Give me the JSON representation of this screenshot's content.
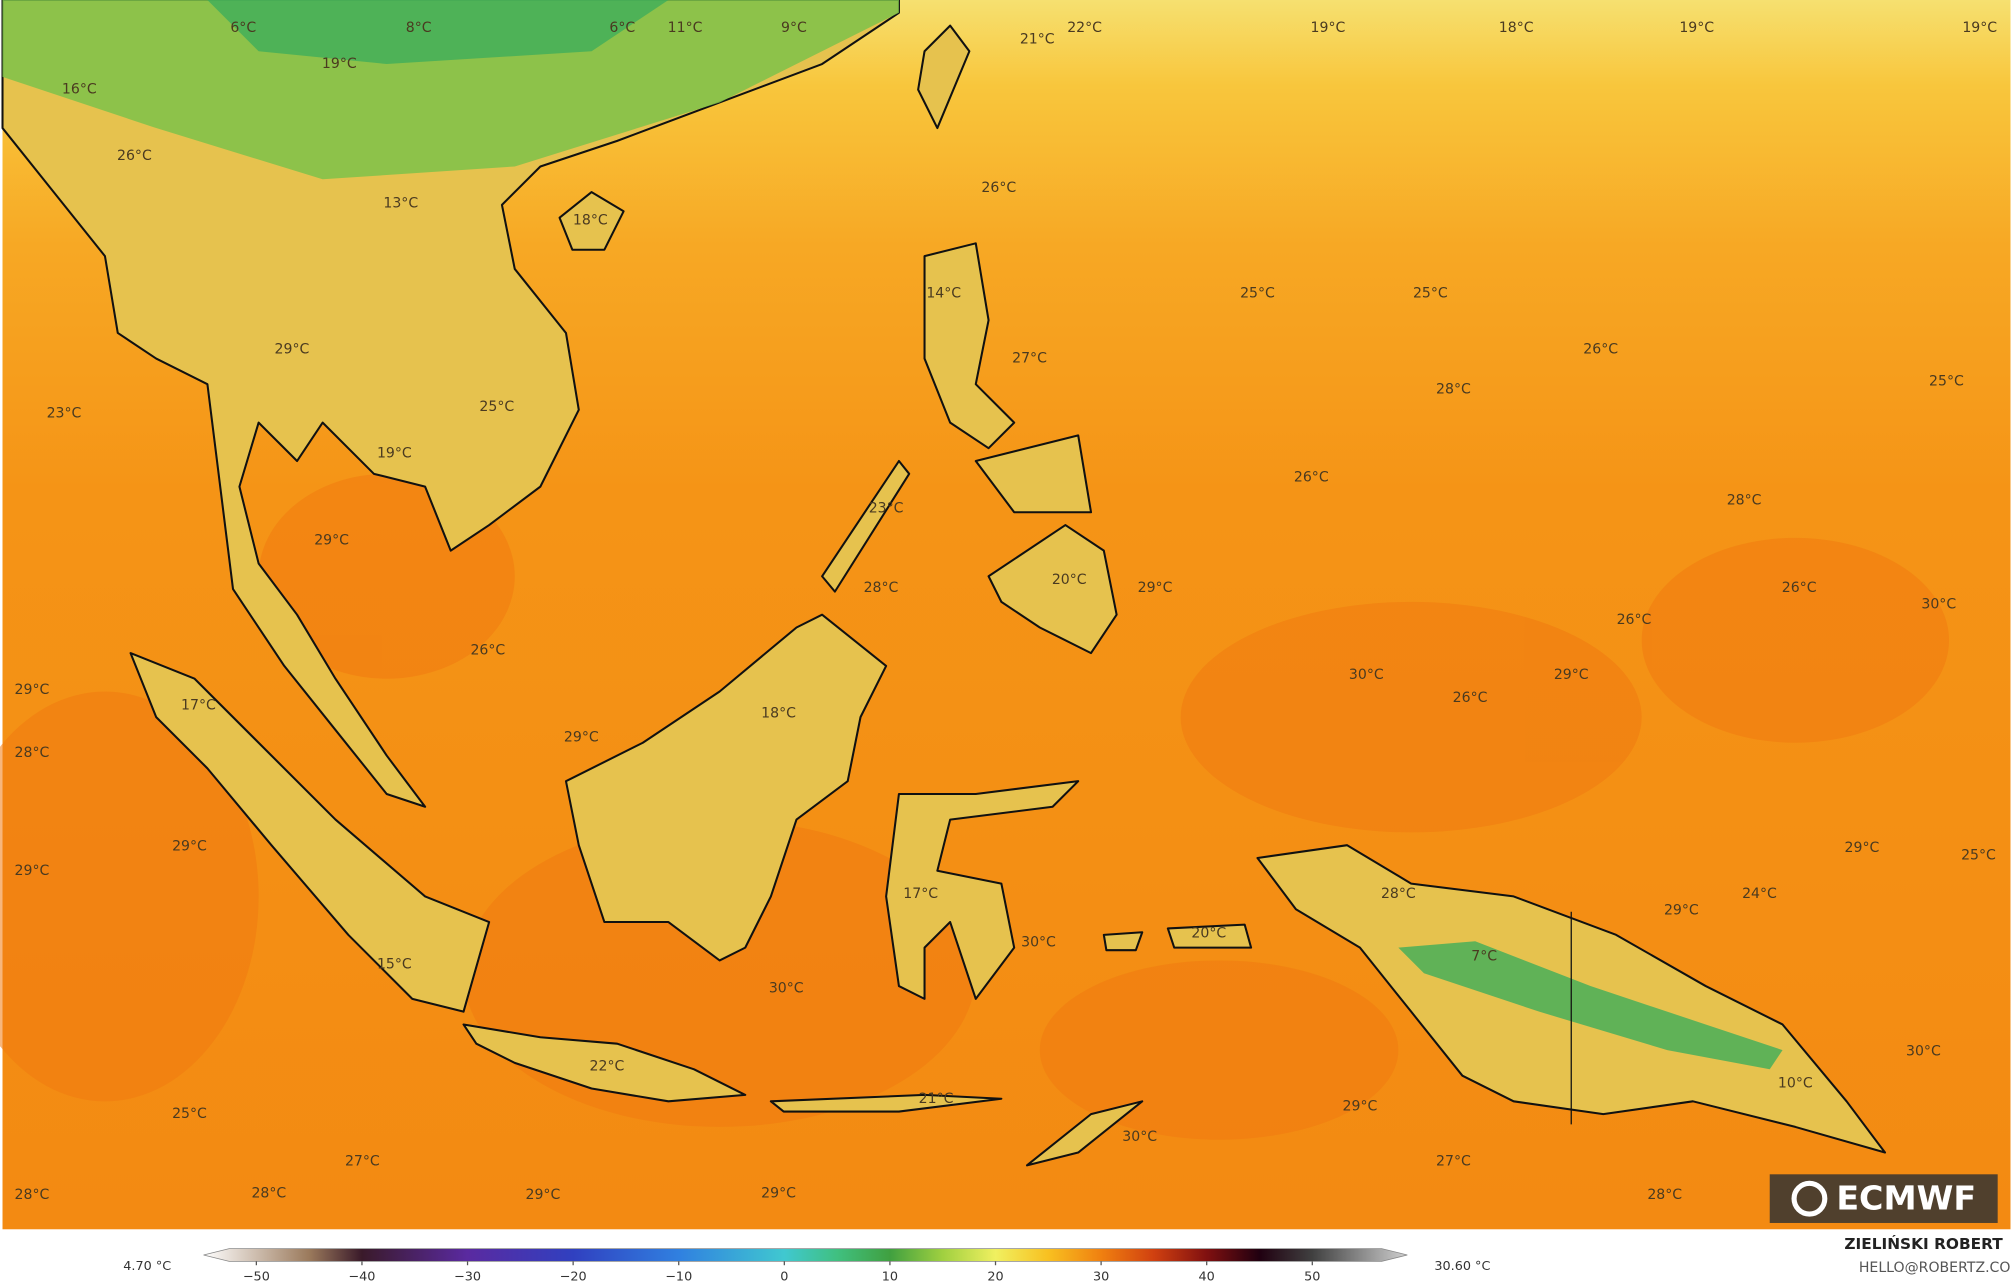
{
  "map": {
    "labels": [
      "6°C",
      "8°C",
      "6°C",
      "11°C",
      "9°C",
      "21°C",
      "22°C",
      "19°C",
      "18°C",
      "19°C",
      "19°C",
      "16°C",
      "19°C",
      "26°C",
      "13°C",
      "18°C",
      "26°C",
      "14°C",
      "25°C",
      "25°C",
      "26°C",
      "27°C",
      "28°C",
      "25°C",
      "29°C",
      "23°C",
      "25°C",
      "19°C",
      "26°C",
      "28°C",
      "23°C",
      "29°C",
      "28°C",
      "20°C",
      "29°C",
      "26°C",
      "30°C",
      "26°C",
      "26°C",
      "30°C",
      "29°C",
      "26°C",
      "29°C",
      "17°C",
      "18°C",
      "29°C",
      "28°C",
      "29°C",
      "29°C",
      "25°C",
      "29°C",
      "17°C",
      "28°C",
      "24°C",
      "29°C",
      "30°C",
      "20°C",
      "7°C",
      "15°C",
      "30°C",
      "30°C",
      "22°C",
      "10°C",
      "21°C",
      "29°C",
      "25°C",
      "30°C",
      "27°C",
      "27°C",
      "28°C",
      "28°C",
      "29°C",
      "29°C",
      "28°C"
    ]
  },
  "legend": {
    "min_label": "4.70 °C",
    "max_label": "30.60 °C",
    "range": [
      -55,
      59
    ],
    "ticks": [
      {
        "value": -50,
        "label": "−50"
      },
      {
        "value": -40,
        "label": "−40"
      },
      {
        "value": -30,
        "label": "−30"
      },
      {
        "value": -20,
        "label": "−20"
      },
      {
        "value": -10,
        "label": "−10"
      },
      0,
      10,
      20,
      30,
      40,
      50
    ],
    "stops": [
      [
        -55,
        "#ffffff"
      ],
      [
        -45,
        "#9b7a5c"
      ],
      [
        -40,
        "#3a1a2a"
      ],
      [
        -30,
        "#5a2aa0"
      ],
      [
        -20,
        "#3040c0"
      ],
      [
        -10,
        "#3080e0"
      ],
      [
        0,
        "#40c8d0"
      ],
      [
        5,
        "#40c080"
      ],
      [
        10,
        "#40a040"
      ],
      [
        15,
        "#a0d040"
      ],
      [
        20,
        "#f0f060"
      ],
      [
        25,
        "#f8c020"
      ],
      [
        30,
        "#f08010"
      ],
      [
        35,
        "#d04010"
      ],
      [
        40,
        "#801010"
      ],
      [
        45,
        "#200010"
      ],
      [
        50,
        "#404040"
      ],
      [
        59,
        "#d0d0d0"
      ]
    ]
  },
  "credits": {
    "author": "ZIELIŃSKI ROBERT",
    "email": "HELLO@ROBERTZ.CO"
  },
  "logo": "ECMWF"
}
